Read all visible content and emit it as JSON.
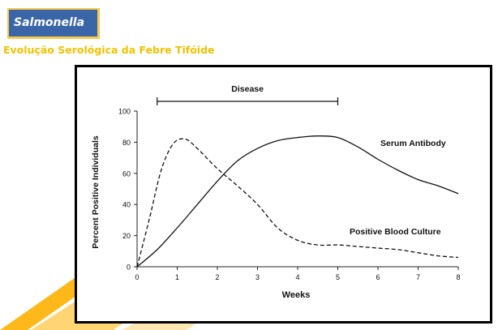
{
  "header": {
    "title": "Salmonella",
    "subtitle": "Evolução Serológica da Febre Tifóide"
  },
  "colors": {
    "title_box_border": "#f7c84d",
    "title_box_fill": "#3a66a8",
    "subtitle": "#f2c200",
    "decor_stripe": "#ffb000"
  },
  "chart_data": {
    "type": "line",
    "title": "",
    "xlabel": "Weeks",
    "ylabel": "Percent Positive Individuals",
    "xlim": [
      0,
      8
    ],
    "ylim": [
      0,
      100
    ],
    "xticks": [
      0,
      1,
      2,
      3,
      4,
      5,
      6,
      7,
      8
    ],
    "yticks": [
      0,
      20,
      40,
      60,
      80,
      100
    ],
    "grid": false,
    "series": [
      {
        "name": "Serum Antibody",
        "style": "solid",
        "x": [
          0,
          0.5,
          1,
          1.5,
          2,
          2.5,
          3,
          3.5,
          4,
          4.5,
          5,
          5.5,
          6,
          6.5,
          7,
          7.5,
          8
        ],
        "y": [
          0,
          11,
          25,
          40,
          55,
          68,
          76,
          81,
          83,
          84,
          83,
          77,
          69,
          62,
          56,
          52,
          47
        ]
      },
      {
        "name": "Positive Blood Culture",
        "style": "dashed",
        "x": [
          0,
          0.3,
          0.6,
          0.9,
          1.2,
          1.5,
          2,
          2.5,
          3,
          3.5,
          4,
          4.5,
          5,
          5.5,
          6,
          6.5,
          7,
          7.5,
          8
        ],
        "y": [
          0,
          30,
          62,
          79,
          82,
          76,
          63,
          52,
          40,
          25,
          17,
          14,
          14,
          13,
          12,
          11,
          9,
          7,
          6
        ]
      }
    ],
    "annotations": [
      {
        "text": "Disease",
        "x_start": 0.5,
        "x_end": 5
      }
    ]
  }
}
